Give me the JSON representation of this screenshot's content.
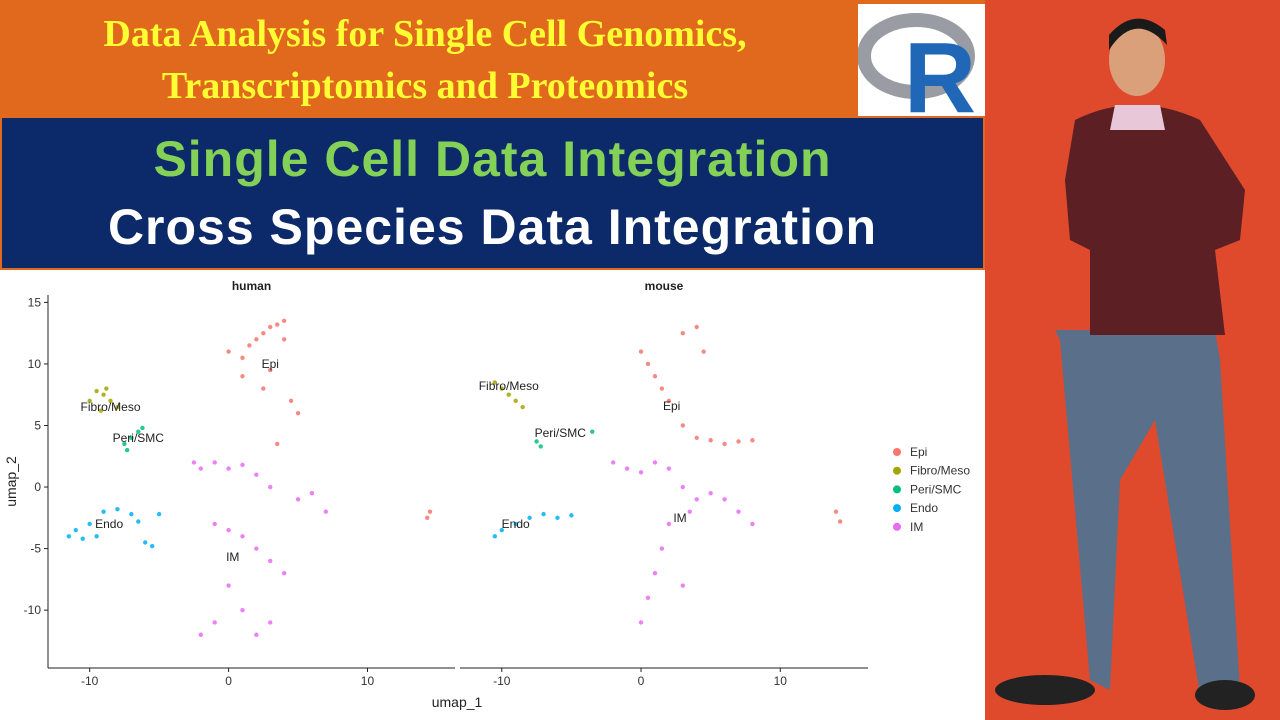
{
  "header": {
    "line1": "Data Analysis for Single Cell Genomics,",
    "line2": "Transcriptomics and Proteomics"
  },
  "banner": {
    "line1": "Single Cell Data Integration",
    "line2": "Cross Species Data Integration"
  },
  "logo": "R",
  "chart_data": {
    "type": "scatter",
    "x_label": "umap_1",
    "y_label": "umap_2",
    "xlim": [
      -13,
      16.3
    ],
    "ylim": [
      -14.7,
      15.6
    ],
    "xticks": [
      -10,
      0,
      10
    ],
    "yticks": [
      -10,
      -5,
      0,
      5,
      10,
      15
    ],
    "groups": [
      {
        "name": "Epi",
        "color": "#f8766d"
      },
      {
        "name": "Fibro/Meso",
        "color": "#a3a500"
      },
      {
        "name": "Peri/SMC",
        "color": "#00bf7d"
      },
      {
        "name": "Endo",
        "color": "#00b0f6"
      },
      {
        "name": "IM",
        "color": "#e76bf3"
      }
    ],
    "facets": [
      {
        "title": "human",
        "series": [
          {
            "x": [
              0,
              1,
              1.5,
              2,
              2.5,
              3,
              3.5,
              4,
              4,
              3,
              2.5,
              1,
              4.5,
              5,
              3.5,
              14.5,
              14.3
            ],
            "y": [
              11,
              10.5,
              11.5,
              12,
              12.5,
              13,
              13.2,
              13.5,
              12,
              9.5,
              8,
              9,
              7,
              6,
              3.5,
              -2,
              -2.5
            ]
          },
          {
            "x": [
              -10,
              -9.5,
              -9,
              -8.5,
              -8,
              -9.2,
              -8.8
            ],
            "y": [
              7,
              7.8,
              7.5,
              7,
              6.5,
              6.2,
              8
            ]
          },
          {
            "x": [
              -7.5,
              -7,
              -6.5,
              -6.2,
              -7.3
            ],
            "y": [
              3.5,
              4,
              4.5,
              4.8,
              3
            ]
          },
          {
            "x": [
              -11.5,
              -11,
              -10,
              -9,
              -8,
              -7,
              -6.5,
              -10.5,
              -9.5,
              -6,
              -5.5,
              -5
            ],
            "y": [
              -4,
              -3.5,
              -3,
              -2,
              -1.8,
              -2.2,
              -2.8,
              -4.2,
              -4,
              -4.5,
              -4.8,
              -2.2
            ]
          },
          {
            "x": [
              -2.5,
              -2,
              -1,
              0,
              1,
              2,
              3,
              -1,
              0,
              1,
              2,
              3,
              4,
              0,
              1,
              -1,
              -2,
              2,
              3,
              5,
              6,
              7
            ],
            "y": [
              2,
              1.5,
              2,
              1.5,
              1.8,
              1,
              0,
              -3,
              -3.5,
              -4,
              -5,
              -6,
              -7,
              -8,
              -10,
              -11,
              -12,
              -12,
              -11,
              -1,
              -0.5,
              -2
            ]
          }
        ],
        "labels": [
          {
            "text": "Epi",
            "x": 3,
            "y": 10
          },
          {
            "text": "Fibro/Meso",
            "x": -8.5,
            "y": 6.5
          },
          {
            "text": "Peri/SMC",
            "x": -6.5,
            "y": 4
          },
          {
            "text": "Endo",
            "x": -8.6,
            "y": -3
          },
          {
            "text": "IM",
            "x": 0.3,
            "y": -5.7
          }
        ]
      },
      {
        "title": "mouse",
        "series": [
          {
            "x": [
              0,
              0.5,
              1,
              1.5,
              2,
              3,
              4,
              5,
              6,
              7,
              8,
              3,
              4,
              4.5,
              14,
              14.3
            ],
            "y": [
              11,
              10,
              9,
              8,
              7,
              5,
              4,
              3.8,
              3.5,
              3.7,
              3.8,
              12.5,
              13,
              11,
              -2,
              -2.8
            ]
          },
          {
            "x": [
              -10.5,
              -10,
              -9.5,
              -9,
              -8.5
            ],
            "y": [
              8.5,
              8,
              7.5,
              7,
              6.5
            ]
          },
          {
            "x": [
              -7.5,
              -7.2,
              -3.5
            ],
            "y": [
              3.7,
              3.3,
              4.5
            ]
          },
          {
            "x": [
              -10.5,
              -10,
              -9,
              -8,
              -7,
              -6,
              -5
            ],
            "y": [
              -4,
              -3.5,
              -3,
              -2.5,
              -2.2,
              -2.5,
              -2.3
            ]
          },
          {
            "x": [
              -2,
              -1,
              0,
              1,
              2,
              3,
              3.5,
              2,
              1.5,
              1,
              0.5,
              0,
              3,
              4,
              5,
              6,
              7,
              8
            ],
            "y": [
              2,
              1.5,
              1.2,
              2,
              1.5,
              0,
              -2,
              -3,
              -5,
              -7,
              -9,
              -11,
              -8,
              -1,
              -0.5,
              -1,
              -2,
              -3
            ]
          }
        ],
        "labels": [
          {
            "text": "Fibro/Meso",
            "x": -9.5,
            "y": 8.2
          },
          {
            "text": "Epi",
            "x": 2.2,
            "y": 6.6
          },
          {
            "text": "Peri/SMC",
            "x": -5.8,
            "y": 4.4
          },
          {
            "text": "Endo",
            "x": -9,
            "y": -3
          },
          {
            "text": "IM",
            "x": 2.8,
            "y": -2.5
          }
        ]
      }
    ]
  }
}
